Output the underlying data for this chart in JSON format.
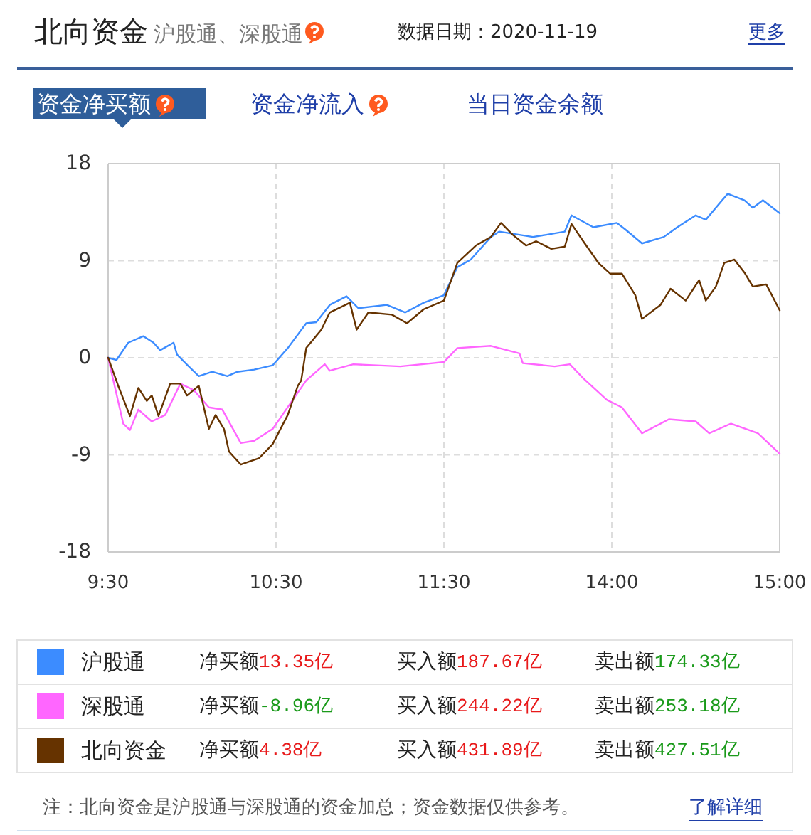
{
  "chart_data": [
    {
      "type": "line",
      "title": "北向资金",
      "subtitle": "沪股通、深股通",
      "xlim": [
        9.5,
        11.5
      ],
      "xticks": [
        {
          "value": 9.5,
          "label": "9:30"
        },
        {
          "value": 10.5,
          "label": "10:30"
        },
        {
          "value": 11.5,
          "label": "11:30"
        }
      ],
      "ylim": [
        -18,
        18
      ],
      "yticks": [
        -18,
        -9,
        0,
        9,
        18
      ],
      "grid": true,
      "legend": "bottom",
      "series": [
        {
          "name": "沪股通",
          "color": "#3c8cff",
          "x": [
            9.5,
            9.55,
            9.62,
            9.71,
            9.77,
            9.81,
            9.89,
            9.91,
            9.98,
            10.04,
            10.12,
            10.21,
            10.27,
            10.37,
            10.48,
            10.57,
            10.68,
            10.74,
            10.82,
            10.92,
            10.99,
            11.16,
            11.27,
            11.38,
            11.5
          ],
          "values": [
            0,
            -0.2,
            1.4,
            2.0,
            1.4,
            0.7,
            1.4,
            0.3,
            -0.8,
            -1.7,
            -1.3,
            -1.7,
            -1.3,
            -1.1,
            -0.7,
            0.9,
            3.2,
            3.3,
            4.9,
            5.7,
            4.6,
            4.9,
            4.2,
            5.1,
            5.8
          ]
        },
        {
          "name": "深股通",
          "color": "#ff66ff",
          "x": [
            9.5,
            9.59,
            9.63,
            9.68,
            9.76,
            9.84,
            9.93,
            10.01,
            10.1,
            10.18,
            10.29,
            10.37,
            10.48,
            10.6,
            10.68,
            10.79,
            10.82,
            10.96,
            11.24,
            11.5
          ],
          "values": [
            0,
            -6.1,
            -6.7,
            -4.8,
            -5.9,
            -5.3,
            -2.4,
            -3.0,
            -4.6,
            -4.8,
            -7.9,
            -7.7,
            -6.6,
            -3.9,
            -2.1,
            -0.6,
            -1.2,
            -0.6,
            -0.8,
            -0.4
          ]
        },
        {
          "name": "北向资金",
          "color": "#663300",
          "x": [
            9.5,
            9.56,
            9.63,
            9.68,
            9.73,
            9.76,
            9.8,
            9.87,
            9.93,
            9.97,
            10.04,
            10.1,
            10.14,
            10.19,
            10.22,
            10.29,
            10.4,
            10.48,
            10.57,
            10.63,
            10.65,
            10.68,
            10.77,
            10.82,
            10.94,
            10.98,
            11.05,
            11.19,
            11.28,
            11.38,
            11.5
          ],
          "values": [
            0,
            -2.6,
            -5.4,
            -2.8,
            -4.0,
            -3.5,
            -5.4,
            -2.4,
            -2.4,
            -3.5,
            -2.6,
            -6.6,
            -5.3,
            -6.6,
            -8.7,
            -9.9,
            -9.3,
            -8.0,
            -5.3,
            -2.6,
            -2.1,
            0.9,
            2.6,
            4.2,
            5.1,
            2.6,
            4.2,
            4.0,
            3.2,
            4.5,
            5.3
          ]
        }
      ],
      "annotations": [
        "数据日期：2020-11-19",
        "更多",
        "资金净买额",
        "资金净流入",
        "当日资金余额",
        "净买额",
        "13.35亿",
        "买入额",
        "187.67亿",
        "卖出额",
        "174.33亿",
        "净买额",
        "-8.96亿",
        "买入额",
        "244.22亿",
        "卖出额",
        "253.18亿",
        "净买额",
        "4.38亿",
        "买入额",
        "431.89亿",
        "卖出额",
        "427.51亿",
        "注：北向资金是沪股通与深股通的资金加总；资金数据仅供参考。",
        "了解详细"
      ]
    },
    {
      "type": "line",
      "xlim": [
        13,
        15
      ],
      "xticks": [
        {
          "value": 14,
          "label": "14:00"
        },
        {
          "value": 15,
          "label": "15:00"
        }
      ],
      "ylim": [
        -18,
        18
      ],
      "yticks": [
        -18,
        -9,
        0,
        9,
        18
      ],
      "tick_labels": "x",
      "grid": true,
      "series": [
        {
          "color": "#3c8cff",
          "x": [
            13.0,
            13.08,
            13.16,
            13.28,
            13.33,
            13.45,
            13.53,
            13.61,
            13.72,
            13.76,
            13.89,
            14.03,
            14.08,
            14.18,
            14.31,
            14.39,
            14.5,
            14.56,
            14.69,
            14.79,
            14.84,
            14.9,
            15.0
          ],
          "values": [
            5.8,
            8.4,
            9.1,
            11.2,
            11.7,
            11.4,
            11.2,
            11.4,
            11.7,
            13.2,
            12.1,
            12.5,
            11.9,
            10.6,
            11.2,
            12.1,
            13.2,
            12.8,
            15.2,
            14.6,
            13.9,
            14.6,
            13.4
          ]
        },
        {
          "color": "#ff66ff",
          "x": [
            13.0,
            13.08,
            13.28,
            13.45,
            13.47,
            13.66,
            13.75,
            13.83,
            13.97,
            14.06,
            14.18,
            14.34,
            14.5,
            14.58,
            14.71,
            14.87,
            15.0
          ],
          "values": [
            -0.4,
            0.9,
            1.1,
            0.4,
            -0.5,
            -0.8,
            -0.6,
            -1.9,
            -3.9,
            -4.6,
            -7.0,
            -5.7,
            -5.9,
            -7.0,
            -6.1,
            -7.0,
            -8.9
          ]
        },
        {
          "color": "#663300",
          "x": [
            13.0,
            13.08,
            13.19,
            13.28,
            13.34,
            13.41,
            13.49,
            13.55,
            13.64,
            13.72,
            13.76,
            13.83,
            13.92,
            13.99,
            14.06,
            14.14,
            14.18,
            14.29,
            14.35,
            14.44,
            14.52,
            14.56,
            14.62,
            14.67,
            14.73,
            14.79,
            14.84,
            14.92,
            15.0
          ],
          "values": [
            5.3,
            8.8,
            10.4,
            11.2,
            12.5,
            11.4,
            10.4,
            10.8,
            10.1,
            10.3,
            12.4,
            10.8,
            8.8,
            7.8,
            7.8,
            5.8,
            3.6,
            4.9,
            6.4,
            5.3,
            7.2,
            5.3,
            6.6,
            8.8,
            9.1,
            7.9,
            6.6,
            6.8,
            4.4
          ]
        }
      ]
    }
  ]
}
